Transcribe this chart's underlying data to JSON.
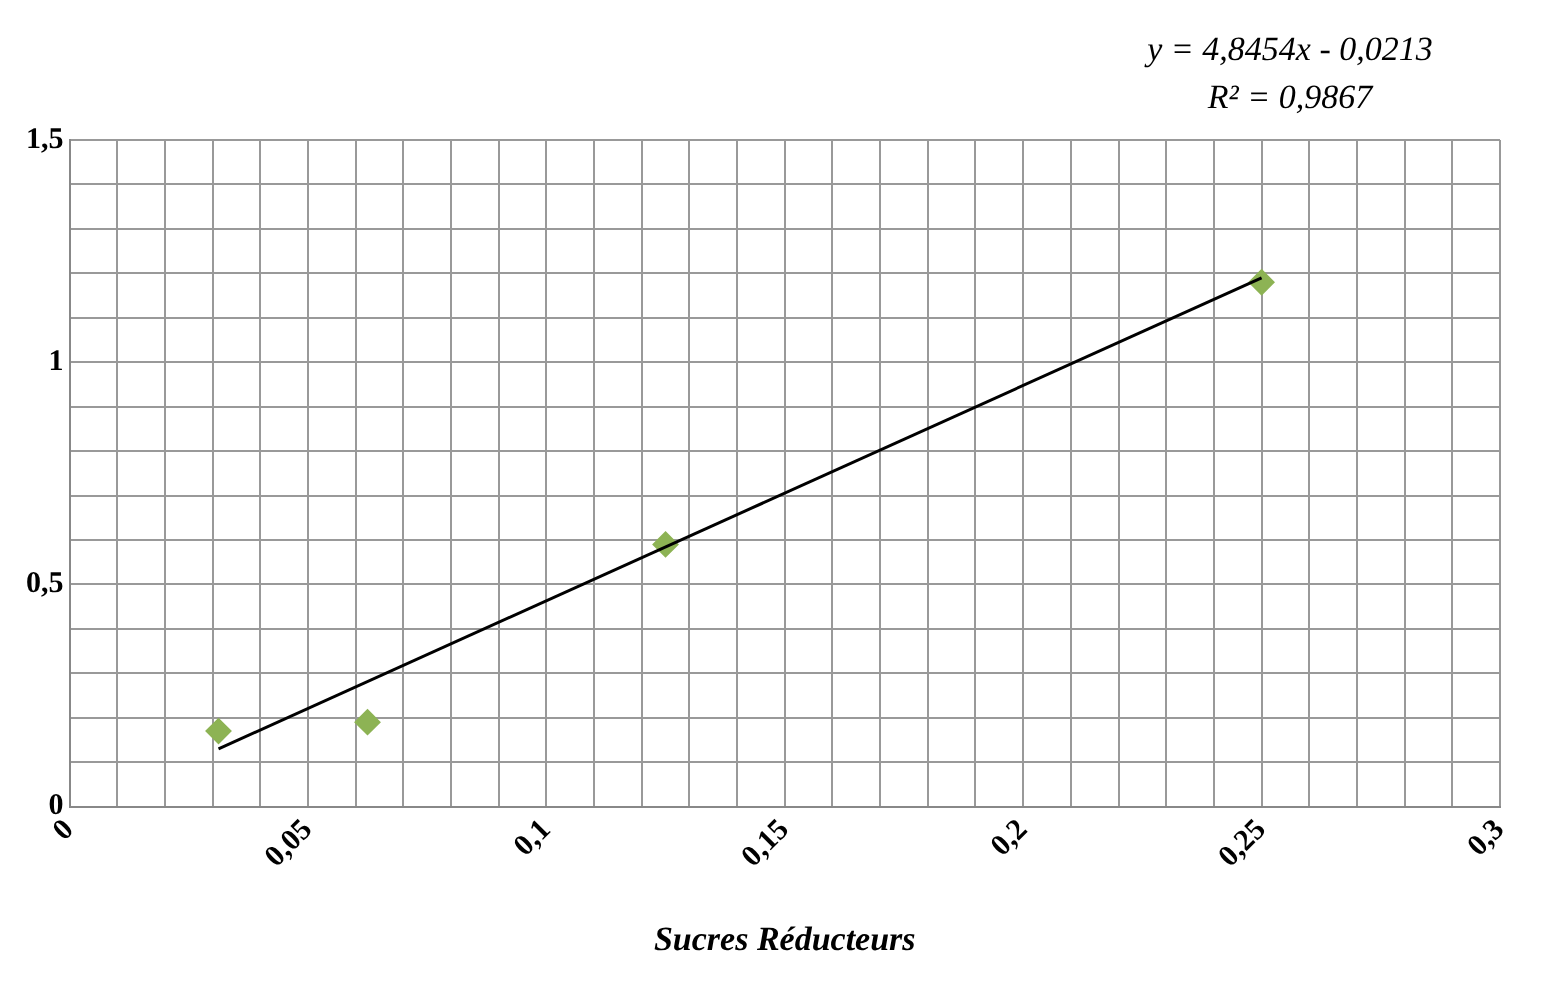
{
  "chart_data": {
    "type": "scatter",
    "xlabel": "Sucres Réducteurs",
    "annotations": [
      "y = 4,8454x - 0,0213",
      "R² = 0,9867"
    ],
    "x": [
      0.03125,
      0.0625,
      0.125,
      0.25
    ],
    "series": [
      {
        "color": "#8db354",
        "values": [
          0.17,
          0.19,
          0.59,
          1.18
        ]
      },
      {
        "type": "line",
        "x": [
          0.03125,
          0.25
        ],
        "values": [
          0.13,
          1.19
        ],
        "color": "#000000",
        "marker": "none"
      }
    ],
    "marker": "diamond",
    "grid": true,
    "xlim": [
      0,
      0.3
    ],
    "ylim": [
      0,
      1.5
    ],
    "xticks": [
      {
        "value": 0,
        "label": "0"
      },
      {
        "value": 0.01,
        "label": null
      },
      {
        "value": 0.02,
        "label": null
      },
      {
        "value": 0.03,
        "label": null
      },
      {
        "value": 0.04,
        "label": null
      },
      {
        "value": 0.05,
        "label": "0,05"
      },
      {
        "value": 0.06,
        "label": null
      },
      {
        "value": 0.07,
        "label": null
      },
      {
        "value": 0.08,
        "label": null
      },
      {
        "value": 0.09,
        "label": null
      },
      {
        "value": 0.1,
        "label": "0,1"
      },
      {
        "value": 0.11,
        "label": null
      },
      {
        "value": 0.12,
        "label": null
      },
      {
        "value": 0.13,
        "label": null
      },
      {
        "value": 0.14,
        "label": null
      },
      {
        "value": 0.15,
        "label": "0,15"
      },
      {
        "value": 0.16,
        "label": null
      },
      {
        "value": 0.17,
        "label": null
      },
      {
        "value": 0.18,
        "label": null
      },
      {
        "value": 0.19,
        "label": null
      },
      {
        "value": 0.2,
        "label": "0,2"
      },
      {
        "value": 0.21,
        "label": null
      },
      {
        "value": 0.22,
        "label": null
      },
      {
        "value": 0.23,
        "label": null
      },
      {
        "value": 0.24,
        "label": null
      },
      {
        "value": 0.25,
        "label": "0,25"
      },
      {
        "value": 0.26,
        "label": null
      },
      {
        "value": 0.27,
        "label": null
      },
      {
        "value": 0.28,
        "label": null
      },
      {
        "value": 0.29,
        "label": null
      },
      {
        "value": 0.3,
        "label": "0,3"
      }
    ],
    "yticks": [
      {
        "value": 0,
        "label": "0"
      },
      {
        "value": 0.1,
        "label": null
      },
      {
        "value": 0.2,
        "label": null
      },
      {
        "value": 0.3,
        "label": null
      },
      {
        "value": 0.4,
        "label": null
      },
      {
        "value": 0.5,
        "label": "0,5"
      },
      {
        "value": 0.6,
        "label": null
      },
      {
        "value": 0.7,
        "label": null
      },
      {
        "value": 0.8,
        "label": null
      },
      {
        "value": 0.9,
        "label": null
      },
      {
        "value": 1,
        "label": "1"
      },
      {
        "value": 1.1,
        "label": null
      },
      {
        "value": 1.2,
        "label": null
      },
      {
        "value": 1.3,
        "label": null
      },
      {
        "value": 1.4,
        "label": null
      },
      {
        "value": 1.5,
        "label": "1,5"
      }
    ]
  }
}
